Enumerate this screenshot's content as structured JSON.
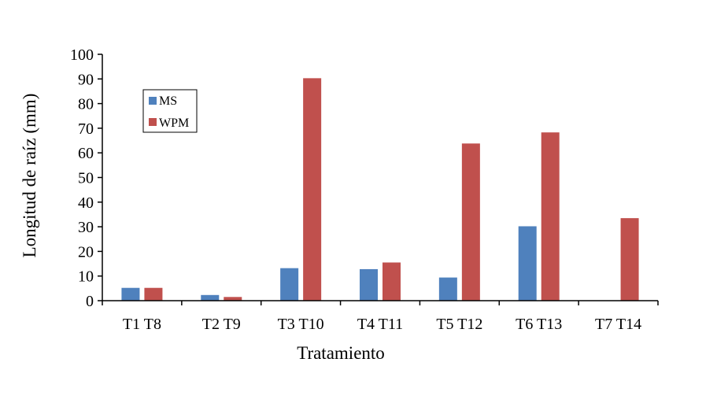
{
  "chart_data": {
    "type": "bar",
    "title": "",
    "xlabel": "Tratamiento",
    "ylabel": "Longitud de raíz (mm)",
    "ylim": [
      0,
      100
    ],
    "yticks": [
      0,
      10,
      20,
      30,
      40,
      50,
      60,
      70,
      80,
      90,
      100
    ],
    "categories": [
      "T1 T8",
      "T2 T9",
      "T3 T10",
      "T4 T11",
      "T5 T12",
      "T6 T13",
      "T7 T14"
    ],
    "series": [
      {
        "name": "MS",
        "color": "#4f81bd",
        "values": [
          5.2,
          2.3,
          13.2,
          12.8,
          9.4,
          30.2,
          0
        ]
      },
      {
        "name": "WPM",
        "color": "#c0504d",
        "values": [
          5.2,
          1.5,
          90.3,
          15.5,
          63.8,
          68.3,
          33.5
        ]
      }
    ],
    "legend_position": "top-left",
    "grid": false
  }
}
